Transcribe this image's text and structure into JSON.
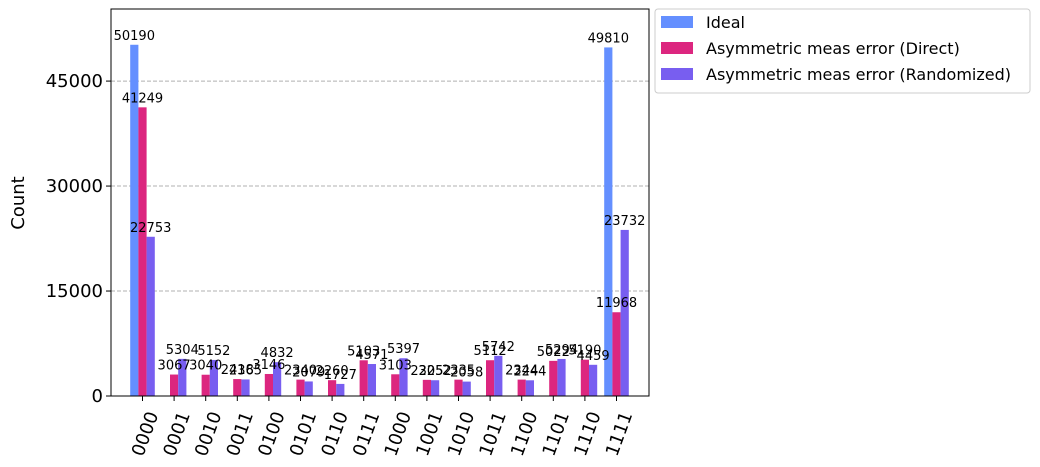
{
  "chart_data": {
    "type": "bar",
    "title": "",
    "xlabel": "",
    "ylabel": "Count",
    "ylim": [
      0,
      55300
    ],
    "yticks": [
      0,
      15000,
      30000,
      45000
    ],
    "grid": "horizontal dashed",
    "legend_position": "outside top-right",
    "categories": [
      "0000",
      "0001",
      "0010",
      "0011",
      "0100",
      "0101",
      "0110",
      "0111",
      "1000",
      "1001",
      "1010",
      "1011",
      "1100",
      "1101",
      "1110",
      "1111"
    ],
    "series": [
      {
        "name": "Ideal",
        "color": "#648fff",
        "values": [
          50190,
          0,
          0,
          0,
          0,
          0,
          0,
          0,
          0,
          0,
          0,
          0,
          0,
          0,
          0,
          49810
        ],
        "labels": [
          "50190",
          "",
          "",
          "",
          "",
          "",
          "",
          "",
          "",
          "",
          "",
          "",
          "",
          "",
          "",
          "49810"
        ]
      },
      {
        "name": "Asymmetric meas error (Direct)",
        "color": "#dc267f",
        "values": [
          41249,
          3067,
          3040,
          2418,
          3146,
          2340,
          2260,
          5103,
          3103,
          2305,
          2335,
          5112,
          2344,
          5022,
          5190,
          11968
        ],
        "labels": [
          "41249",
          "3067",
          "3040",
          "2418",
          "3146",
          "2340",
          "2260",
          "5103",
          "3103",
          "2305",
          "2335",
          "5112",
          "2344",
          "5022",
          "5190",
          "11968"
        ]
      },
      {
        "name": "Asymmetric meas error (Randomized)",
        "color": "#785ef0",
        "values": [
          22753,
          5304,
          5152,
          2365,
          4832,
          2079,
          1727,
          4571,
          5397,
          2252,
          2058,
          5742,
          2244,
          5294,
          4459,
          23732
        ],
        "labels": [
          "22753",
          "5304",
          "5152",
          "2365",
          "4832",
          "2079",
          "1727",
          "4571",
          "5397",
          "2252",
          "2058",
          "5742",
          "2244",
          "5294",
          "4459",
          "23732"
        ]
      }
    ]
  }
}
